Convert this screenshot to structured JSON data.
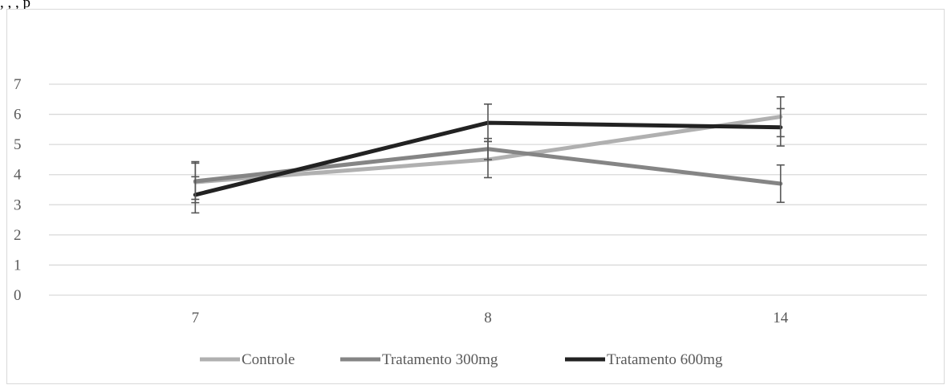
{
  "page": {
    "top_text": ", , , p"
  },
  "chart_data": {
    "type": "line",
    "title": "",
    "xlabel": "",
    "ylabel": "",
    "categories": [
      "7",
      "8",
      "14"
    ],
    "ylim": [
      0,
      7
    ],
    "yticks": [
      0,
      1,
      2,
      3,
      4,
      5,
      6,
      7
    ],
    "grid": "horizontal",
    "legend_position": "bottom",
    "error_bars": true,
    "series": [
      {
        "name": "Controle",
        "values": [
          3.75,
          4.5,
          5.92
        ],
        "errors": [
          0.68,
          0.6,
          0.66
        ],
        "color": "#b0b0b0"
      },
      {
        "name": "Tratamento 300mg",
        "values": [
          3.78,
          4.85,
          3.7
        ],
        "errors": [
          0.6,
          0.35,
          0.62
        ],
        "color": "#858585"
      },
      {
        "name": "Tratamento 600mg",
        "values": [
          3.33,
          5.72,
          5.57
        ],
        "errors": [
          0.6,
          0.62,
          0.62
        ],
        "color": "#222222"
      }
    ]
  }
}
